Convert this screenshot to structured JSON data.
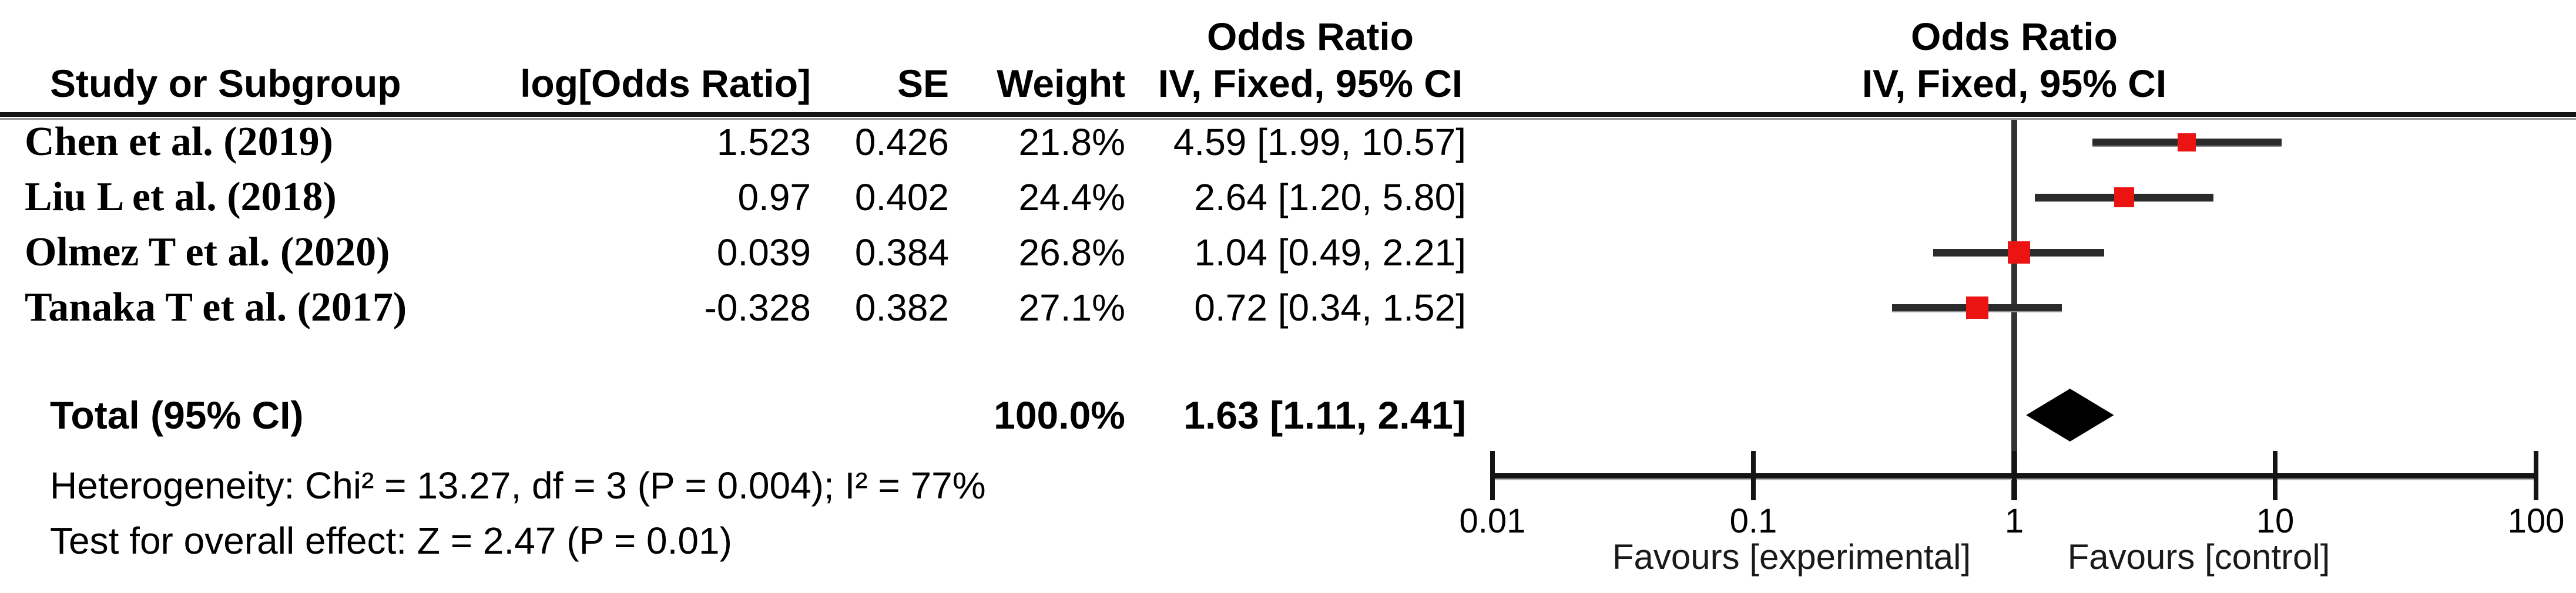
{
  "table": {
    "headers": {
      "odds_ratio_line1": "Odds Ratio",
      "study": "Study or Subgroup",
      "log_or": "log[Odds Ratio]",
      "se": "SE",
      "weight": "Weight",
      "ci_method": "IV, Fixed, 95% CI"
    },
    "rows": [
      {
        "study": "Chen et al. (2019)",
        "log_or": "1.523",
        "se": "0.426",
        "weight": "21.8%",
        "ci": "4.59 [1.99, 10.57]"
      },
      {
        "study": "Liu L et al. (2018)",
        "log_or": "0.97",
        "se": "0.402",
        "weight": "24.4%",
        "ci": "2.64 [1.20, 5.80]"
      },
      {
        "study": "Olmez T et al. (2020)",
        "log_or": "0.039",
        "se": "0.384",
        "weight": "26.8%",
        "ci": "1.04 [0.49, 2.21]"
      },
      {
        "study": "Tanaka T et al. (2017)",
        "log_or": "-0.328",
        "se": "0.382",
        "weight": "27.1%",
        "ci": "0.72 [0.34, 1.52]"
      }
    ],
    "total": {
      "label": "Total (95% CI)",
      "weight": "100.0%",
      "ci": "1.63 [1.11, 2.41]"
    },
    "heterogeneity_line": "Heterogeneity: Chi² = 13.27, df = 3 (P = 0.004); I² = 77%",
    "overall_effect_line": "Test for overall effect: Z = 2.47 (P = 0.01)"
  },
  "plot": {
    "header_line1": "Odds Ratio",
    "header_line2": "IV, Fixed, 95% CI",
    "favours_left": "Favours [experimental]",
    "favours_right": "Favours [control]",
    "marker_color": "#EC1313",
    "ci_line_color": "#2b2b2b",
    "axis_color": "#141414",
    "diamond_color": "#000000"
  },
  "chart_data": {
    "type": "forest",
    "effect_measure": "Odds Ratio",
    "model": "IV, Fixed, 95% CI",
    "x_scale": "log10",
    "x_ticks": [
      0.01,
      0.1,
      1,
      10,
      100
    ],
    "x_tick_labels": [
      "0.01",
      "0.1",
      "1",
      "10",
      "100"
    ],
    "xlim": [
      0.01,
      100
    ],
    "null_line": 1,
    "studies": [
      {
        "name": "Chen et al. (2019)",
        "log_or": 1.523,
        "se": 0.426,
        "weight_pct": 21.8,
        "or": 4.59,
        "ci_low": 1.99,
        "ci_high": 10.57
      },
      {
        "name": "Liu L et al. (2018)",
        "log_or": 0.97,
        "se": 0.402,
        "weight_pct": 24.4,
        "or": 2.64,
        "ci_low": 1.2,
        "ci_high": 5.8
      },
      {
        "name": "Olmez T et al. (2020)",
        "log_or": 0.039,
        "se": 0.384,
        "weight_pct": 26.8,
        "or": 1.04,
        "ci_low": 0.49,
        "ci_high": 2.21
      },
      {
        "name": "Tanaka T et al. (2017)",
        "log_or": -0.328,
        "se": 0.382,
        "weight_pct": 27.1,
        "or": 0.72,
        "ci_low": 0.34,
        "ci_high": 1.52
      }
    ],
    "total": {
      "label": "Total (95% CI)",
      "or": 1.63,
      "ci_low": 1.11,
      "ci_high": 2.41,
      "weight_pct": 100.0
    },
    "heterogeneity": {
      "chi2": 13.27,
      "df": 3,
      "p": 0.004,
      "i2_pct": 77
    },
    "overall_effect": {
      "z": 2.47,
      "p": 0.01
    }
  }
}
